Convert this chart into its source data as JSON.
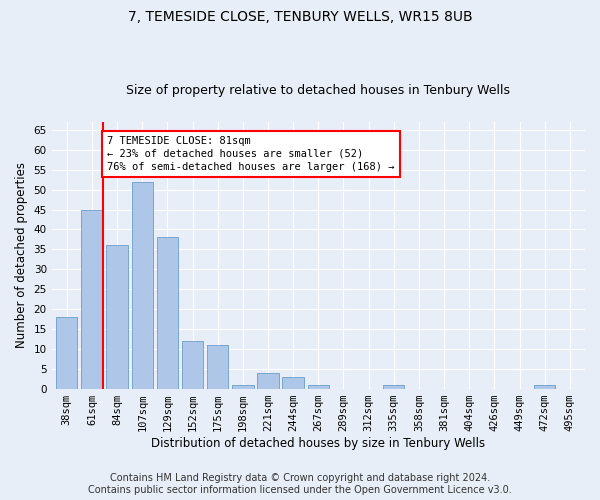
{
  "title": "7, TEMESIDE CLOSE, TENBURY WELLS, WR15 8UB",
  "subtitle": "Size of property relative to detached houses in Tenbury Wells",
  "xlabel": "Distribution of detached houses by size in Tenbury Wells",
  "ylabel": "Number of detached properties",
  "categories": [
    "38sqm",
    "61sqm",
    "84sqm",
    "107sqm",
    "129sqm",
    "152sqm",
    "175sqm",
    "198sqm",
    "221sqm",
    "244sqm",
    "267sqm",
    "289sqm",
    "312sqm",
    "335sqm",
    "358sqm",
    "381sqm",
    "404sqm",
    "426sqm",
    "449sqm",
    "472sqm",
    "495sqm"
  ],
  "values": [
    18,
    45,
    36,
    52,
    38,
    12,
    11,
    1,
    4,
    3,
    1,
    0,
    0,
    1,
    0,
    0,
    0,
    0,
    0,
    1,
    0
  ],
  "bar_color": "#aec6e8",
  "bar_edge_color": "#6a9ec8",
  "annotation_text": "7 TEMESIDE CLOSE: 81sqm\n← 23% of detached houses are smaller (52)\n76% of semi-detached houses are larger (168) →",
  "annotation_box_color": "white",
  "annotation_box_edge": "red",
  "vline_color": "red",
  "ylim": [
    0,
    67
  ],
  "yticks": [
    0,
    5,
    10,
    15,
    20,
    25,
    30,
    35,
    40,
    45,
    50,
    55,
    60,
    65
  ],
  "footer": "Contains HM Land Registry data © Crown copyright and database right 2024.\nContains public sector information licensed under the Open Government Licence v3.0.",
  "bg_color": "#e8eef8",
  "grid_color": "#ffffff",
  "title_fontsize": 10,
  "subtitle_fontsize": 9,
  "tick_fontsize": 7.5,
  "footer_fontsize": 7
}
